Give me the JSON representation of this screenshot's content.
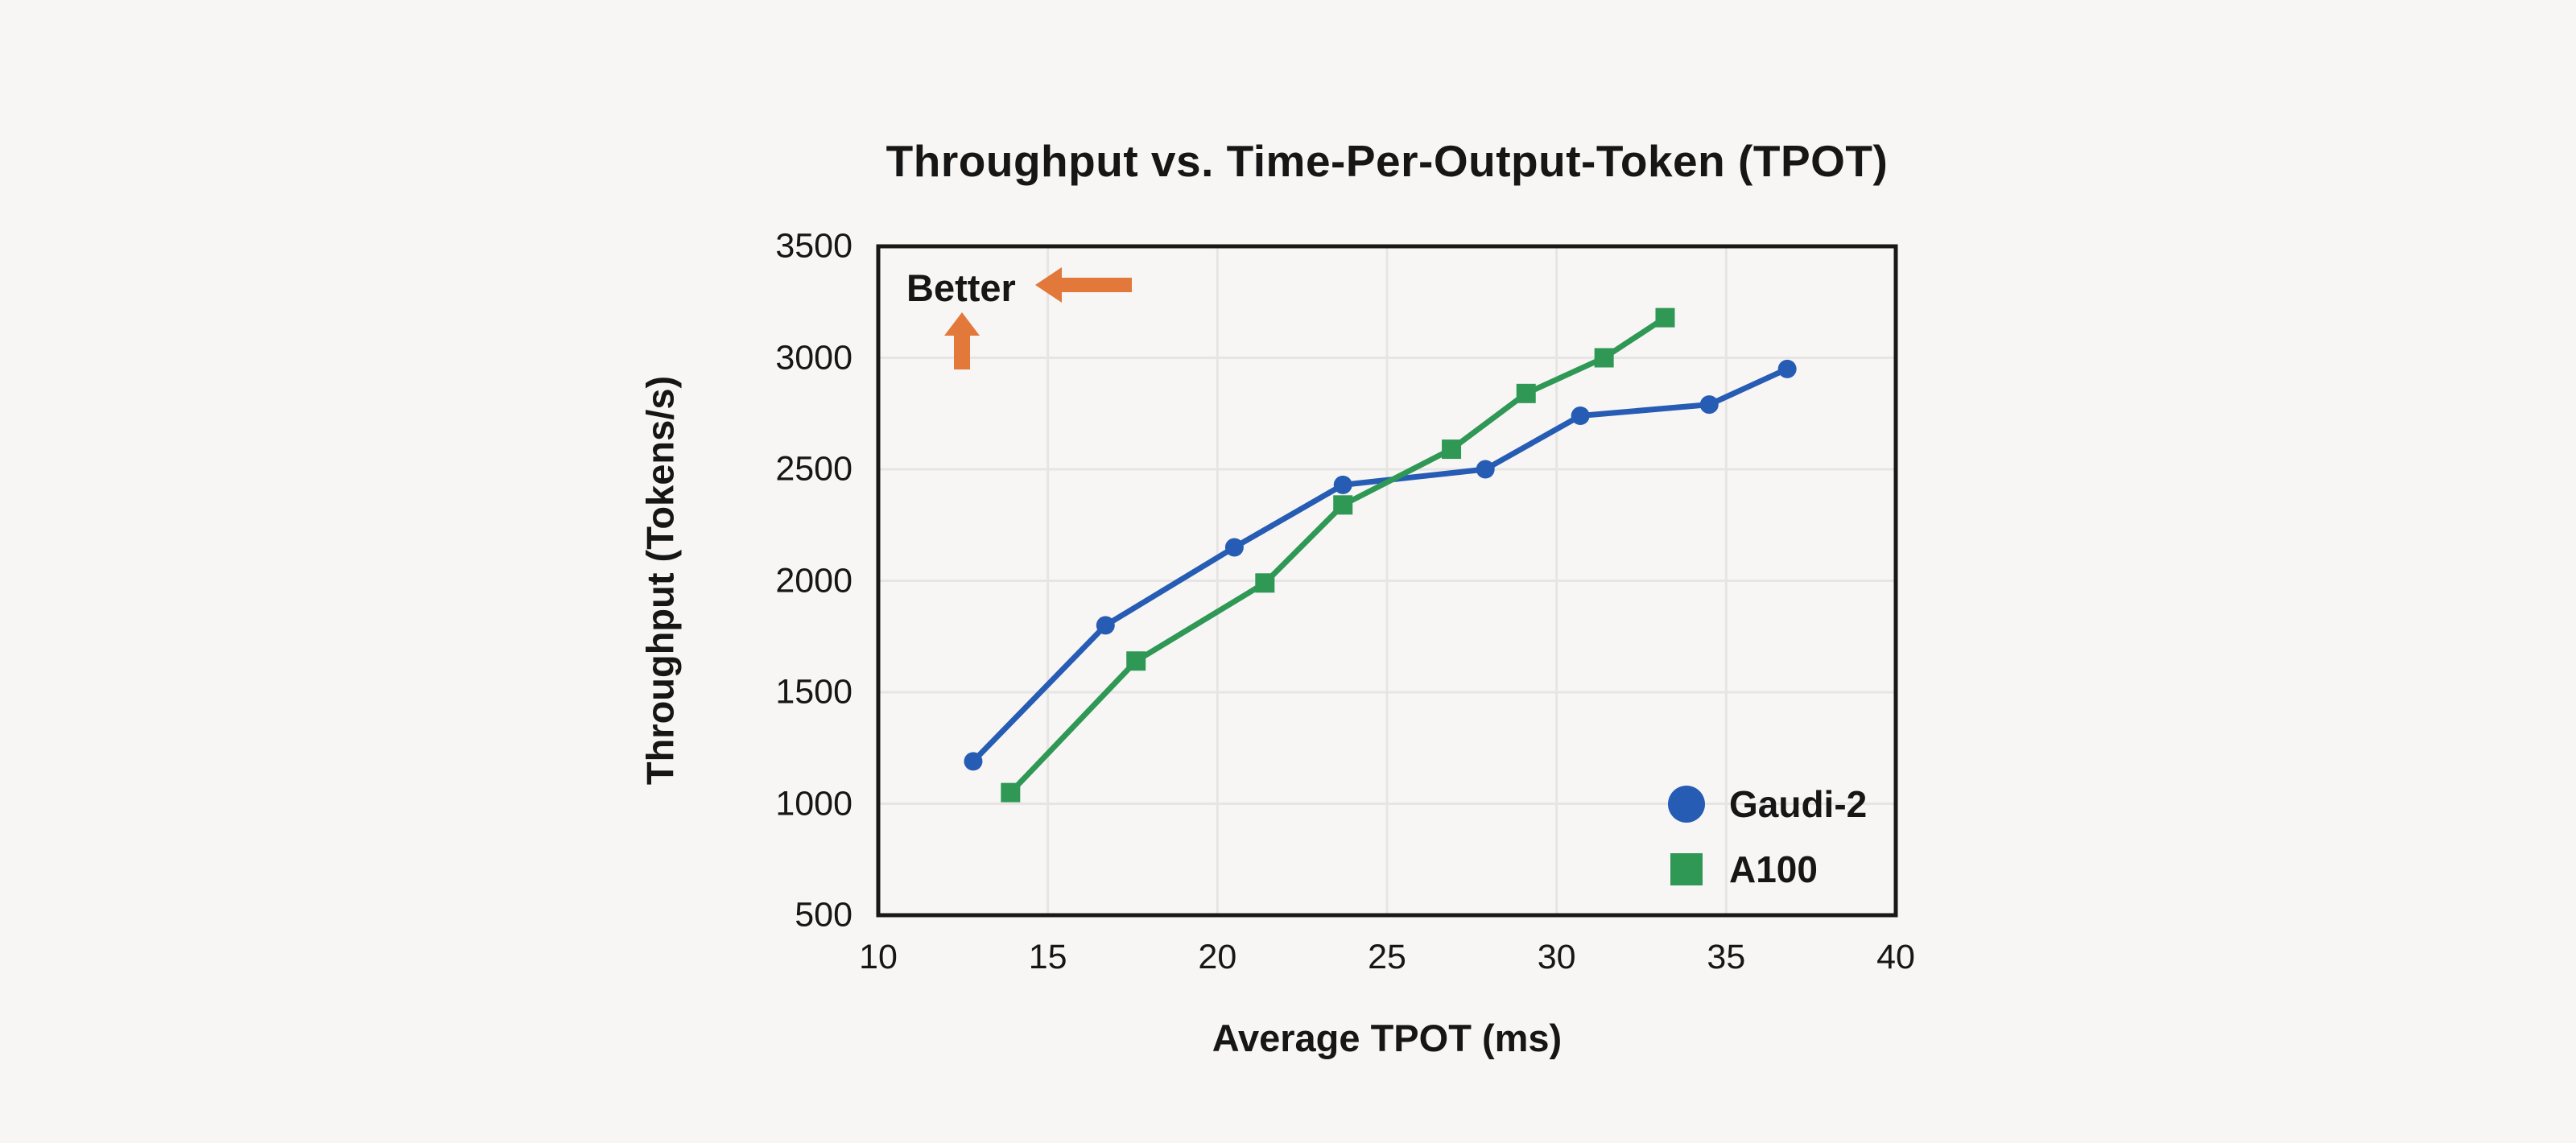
{
  "chart_data": {
    "type": "line",
    "title": "Throughput vs. Time-Per-Output-Token (TPOT)",
    "xlabel": "Average TPOT (ms)",
    "ylabel": "Throughput (Tokens/s)",
    "xlim": [
      10,
      40
    ],
    "ylim": [
      500,
      3500
    ],
    "x_ticks": [
      10,
      15,
      20,
      25,
      30,
      35,
      40
    ],
    "y_ticks": [
      500,
      1000,
      1500,
      2000,
      2500,
      3000,
      3500
    ],
    "grid": true,
    "legend_position": "lower right",
    "series": [
      {
        "name": "Gaudi-2",
        "color": "#265CB4",
        "marker": "circle",
        "points": [
          [
            12.8,
            1190
          ],
          [
            16.7,
            1800
          ],
          [
            20.5,
            2150
          ],
          [
            23.7,
            2430
          ],
          [
            27.9,
            2500
          ],
          [
            30.7,
            2740
          ],
          [
            34.5,
            2790
          ],
          [
            36.8,
            2950
          ]
        ]
      },
      {
        "name": "A100",
        "color": "#2F9855",
        "marker": "square",
        "points": [
          [
            13.9,
            1050
          ],
          [
            17.6,
            1640
          ],
          [
            21.4,
            1990
          ],
          [
            23.7,
            2340
          ],
          [
            26.9,
            2590
          ],
          [
            29.1,
            2840
          ],
          [
            31.4,
            3000
          ],
          [
            33.2,
            3180
          ]
        ]
      }
    ],
    "annotation": {
      "text": "Better",
      "arrow_directions": [
        "left",
        "up"
      ],
      "arrow_color": "#E2783A"
    }
  },
  "colors": {
    "background": "#f7f6f5",
    "axis_border": "#181818",
    "gridline": "#e6e5e3",
    "text": "#161616"
  }
}
